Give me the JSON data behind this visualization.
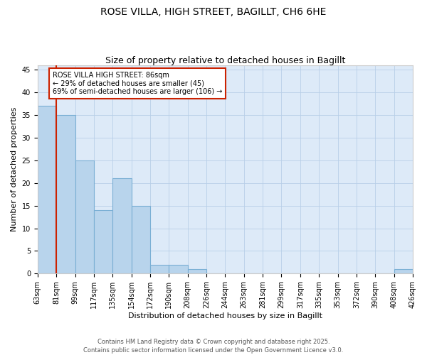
{
  "title_line1": "ROSE VILLA, HIGH STREET, BAGILLT, CH6 6HE",
  "title_line2": "Size of property relative to detached houses in Bagillt",
  "xlabel": "Distribution of detached houses by size in Bagillt",
  "ylabel": "Number of detached properties",
  "bins": [
    "63sqm",
    "81sqm",
    "99sqm",
    "117sqm",
    "135sqm",
    "154sqm",
    "172sqm",
    "190sqm",
    "208sqm",
    "226sqm",
    "244sqm",
    "263sqm",
    "281sqm",
    "299sqm",
    "317sqm",
    "335sqm",
    "353sqm",
    "372sqm",
    "390sqm",
    "408sqm",
    "426sqm"
  ],
  "values": [
    37,
    35,
    25,
    14,
    21,
    15,
    2,
    2,
    1,
    0,
    0,
    0,
    0,
    0,
    0,
    0,
    0,
    0,
    0,
    1
  ],
  "bar_color": "#b8d4ec",
  "bar_edge_color": "#7aafd4",
  "background_color": "#ddeaf8",
  "grid_color": "#b8cfe8",
  "red_line_x": 1,
  "red_line_color": "#cc2200",
  "annotation_line1": "ROSE VILLA HIGH STREET: 86sqm",
  "annotation_line2": "← 29% of detached houses are smaller (45)",
  "annotation_line3": "69% of semi-detached houses are larger (106) →",
  "annotation_box_color": "#cc2200",
  "ylim": [
    0,
    46
  ],
  "yticks": [
    0,
    5,
    10,
    15,
    20,
    25,
    30,
    35,
    40,
    45
  ],
  "footer_line1": "Contains HM Land Registry data © Crown copyright and database right 2025.",
  "footer_line2": "Contains public sector information licensed under the Open Government Licence v3.0.",
  "title_fontsize": 10,
  "subtitle_fontsize": 9,
  "axis_label_fontsize": 8,
  "tick_fontsize": 7,
  "annotation_fontsize": 7,
  "footer_fontsize": 6
}
